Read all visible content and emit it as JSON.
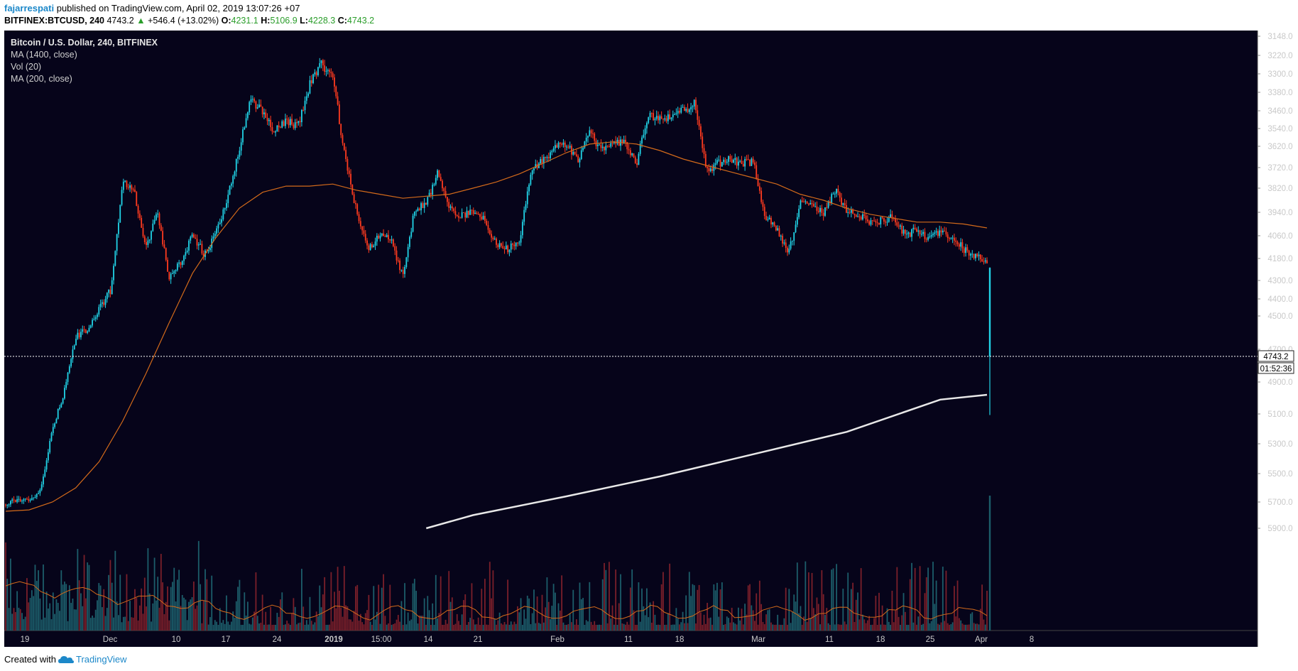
{
  "header": {
    "author": "fajarrespati",
    "published_text": "published on TradingView.com, April 02, 2019 13:07:26 +07",
    "symbol": "BITFINEX:BTCUSD, 240",
    "last": "4743.2",
    "up_arrow": "▲",
    "change": "+546.4 (+13.02%)",
    "o_label": "O:",
    "o": "4231.1",
    "h_label": "H:",
    "h": "5106.9",
    "l_label": "L:",
    "l": "4228.3",
    "c_label": "C:",
    "c": "4743.2"
  },
  "legend": {
    "title": "Bitcoin / U.S. Dollar, 240, BITFINEX",
    "ma1": "MA (1400, close)",
    "vol": "Vol (20)",
    "ma2": "MA (200, close)"
  },
  "price_label": "4743.2",
  "countdown": "01:52:36",
  "footer": {
    "created_with": "Created with",
    "brand": "TradingView"
  },
  "colors": {
    "background": "#06041a",
    "up": "#ff3b1f",
    "down": "#21d3e6",
    "ma200": "#d36a1a",
    "ma1400": "#e8e8e8",
    "vol_up": "#7a1f2a",
    "vol_down": "#1c5d6a"
  },
  "chart_data": {
    "type": "candlestick",
    "y_axis_inverted": true,
    "ylim": [
      3120,
      5960
    ],
    "yticks": [
      "3148.0",
      "3220.0",
      "3300.0",
      "3380.0",
      "3460.0",
      "3540.0",
      "3620.0",
      "3720.0",
      "3820.0",
      "3940.0",
      "4060.0",
      "4180.0",
      "4300.0",
      "4400.0",
      "4500.0",
      "4700.0",
      "4900.0",
      "5100.0",
      "5300.0",
      "5500.0",
      "5700.0",
      "5900.0"
    ],
    "x_labels": [
      "19",
      "Dec",
      "10",
      "17",
      "24",
      "2019",
      "15:00",
      "14",
      "21",
      "Feb",
      "11",
      "18",
      "Mar",
      "11",
      "18",
      "25",
      "Apr",
      "8"
    ],
    "close_path": [
      [
        0,
        5720
      ],
      [
        1,
        5680
      ],
      [
        2,
        5690
      ],
      [
        3,
        5620
      ],
      [
        4,
        5200
      ],
      [
        5,
        4960
      ],
      [
        6,
        4620
      ],
      [
        7,
        4580
      ],
      [
        8,
        4460
      ],
      [
        9,
        4350
      ],
      [
        10,
        3780
      ],
      [
        11,
        3840
      ],
      [
        12,
        4120
      ],
      [
        13,
        3940
      ],
      [
        14,
        4290
      ],
      [
        15,
        4200
      ],
      [
        16,
        4050
      ],
      [
        17,
        4160
      ],
      [
        18,
        4050
      ],
      [
        19,
        3860
      ],
      [
        20,
        3630
      ],
      [
        21,
        3410
      ],
      [
        22,
        3470
      ],
      [
        23,
        3560
      ],
      [
        24,
        3500
      ],
      [
        25,
        3530
      ],
      [
        26,
        3350
      ],
      [
        27,
        3260
      ],
      [
        28,
        3300
      ],
      [
        29,
        3660
      ],
      [
        30,
        3930
      ],
      [
        31,
        4130
      ],
      [
        32,
        4060
      ],
      [
        33,
        4080
      ],
      [
        34,
        4280
      ],
      [
        35,
        3920
      ],
      [
        36,
        3900
      ],
      [
        37,
        3740
      ],
      [
        38,
        3920
      ],
      [
        39,
        3960
      ],
      [
        40,
        3940
      ],
      [
        41,
        3970
      ],
      [
        42,
        4110
      ],
      [
        43,
        4130
      ],
      [
        44,
        4080
      ],
      [
        45,
        3720
      ],
      [
        46,
        3690
      ],
      [
        47,
        3620
      ],
      [
        48,
        3610
      ],
      [
        49,
        3680
      ],
      [
        50,
        3560
      ],
      [
        51,
        3640
      ],
      [
        52,
        3590
      ],
      [
        53,
        3610
      ],
      [
        54,
        3700
      ],
      [
        55,
        3470
      ],
      [
        56,
        3500
      ],
      [
        57,
        3480
      ],
      [
        58,
        3460
      ],
      [
        59,
        3430
      ],
      [
        60,
        3740
      ],
      [
        61,
        3700
      ],
      [
        62,
        3680
      ],
      [
        63,
        3700
      ],
      [
        64,
        3690
      ],
      [
        65,
        3960
      ],
      [
        66,
        4020
      ],
      [
        67,
        4160
      ],
      [
        68,
        3890
      ],
      [
        69,
        3900
      ],
      [
        70,
        3950
      ],
      [
        71,
        3830
      ],
      [
        72,
        3940
      ],
      [
        73,
        3950
      ],
      [
        74,
        3990
      ],
      [
        75,
        3980
      ],
      [
        76,
        3960
      ],
      [
        77,
        4060
      ],
      [
        78,
        4030
      ],
      [
        79,
        4080
      ],
      [
        80,
        4040
      ],
      [
        81,
        4060
      ],
      [
        82,
        4130
      ],
      [
        83,
        4170
      ],
      [
        84,
        4190
      ]
    ],
    "close_path_note": "",
    "ma200": [
      [
        0,
        5770
      ],
      [
        2,
        5760
      ],
      [
        4,
        5700
      ],
      [
        6,
        5600
      ],
      [
        8,
        5420
      ],
      [
        10,
        5150
      ],
      [
        12,
        4850
      ],
      [
        14,
        4540
      ],
      [
        16,
        4260
      ],
      [
        18,
        4070
      ],
      [
        20,
        3920
      ],
      [
        22,
        3840
      ],
      [
        24,
        3810
      ],
      [
        26,
        3810
      ],
      [
        28,
        3800
      ],
      [
        30,
        3830
      ],
      [
        32,
        3850
      ],
      [
        34,
        3870
      ],
      [
        36,
        3860
      ],
      [
        38,
        3850
      ],
      [
        40,
        3820
      ],
      [
        42,
        3790
      ],
      [
        44,
        3750
      ],
      [
        46,
        3700
      ],
      [
        48,
        3650
      ],
      [
        50,
        3610
      ],
      [
        52,
        3600
      ],
      [
        54,
        3610
      ],
      [
        56,
        3640
      ],
      [
        58,
        3680
      ],
      [
        60,
        3710
      ],
      [
        62,
        3740
      ],
      [
        64,
        3770
      ],
      [
        66,
        3800
      ],
      [
        68,
        3850
      ],
      [
        70,
        3880
      ],
      [
        72,
        3920
      ],
      [
        74,
        3950
      ],
      [
        76,
        3970
      ],
      [
        78,
        3990
      ],
      [
        80,
        3990
      ],
      [
        82,
        4000
      ],
      [
        84,
        4020
      ]
    ],
    "ma1400": [
      [
        36,
        5980
      ],
      [
        40,
        5800
      ],
      [
        48,
        5660
      ],
      [
        56,
        5520
      ],
      [
        64,
        5370
      ],
      [
        72,
        5220
      ],
      [
        80,
        5010
      ],
      [
        84,
        4980
      ]
    ],
    "last_candle": {
      "open": 4231.1,
      "high": 5106.9,
      "low": 4228.3,
      "close": 4743.2
    }
  }
}
